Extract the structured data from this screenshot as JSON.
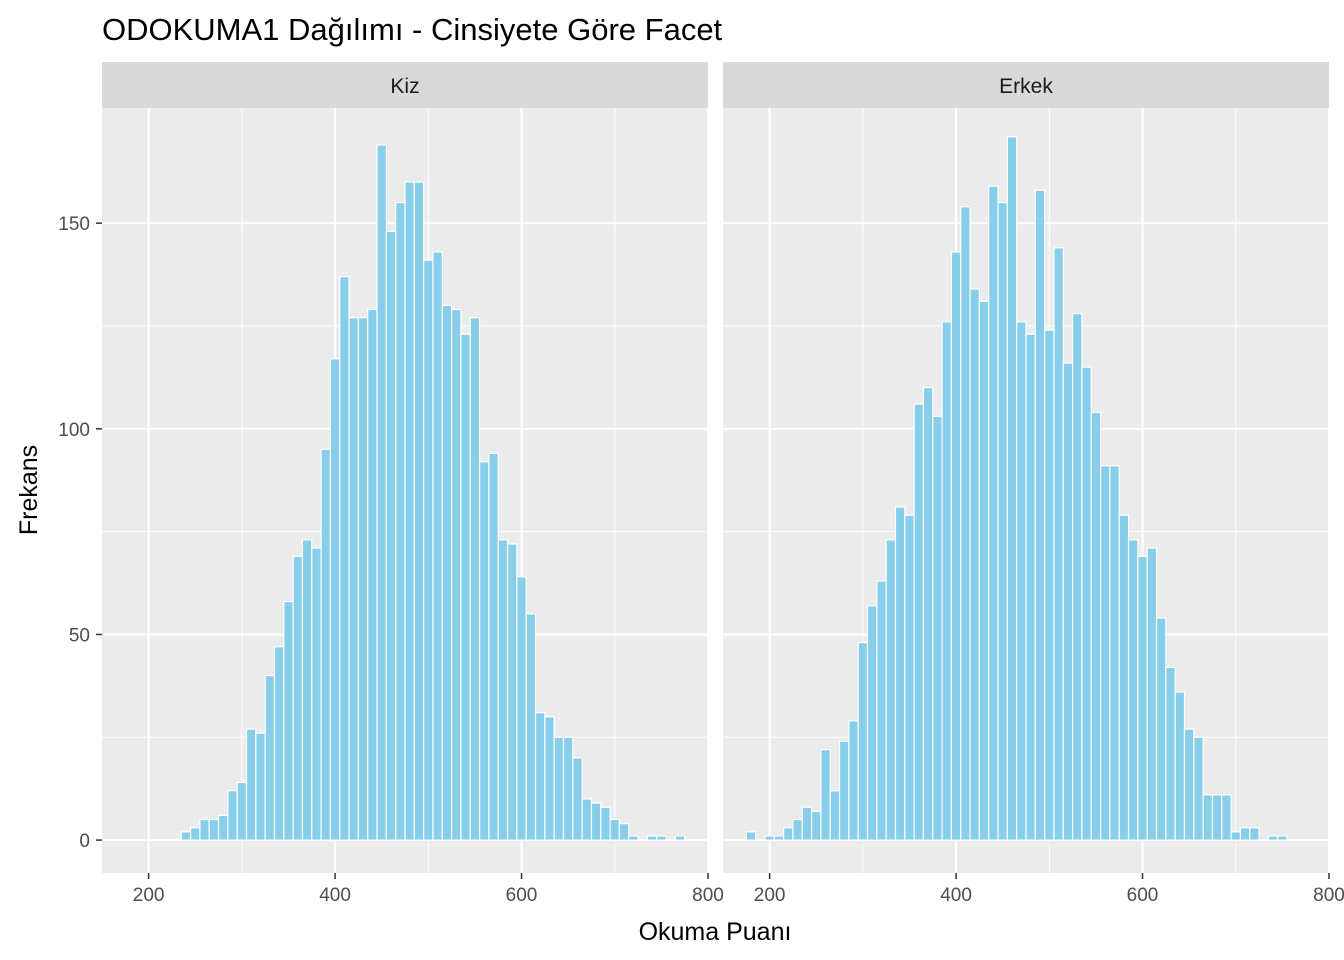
{
  "chart_data": {
    "type": "histogram",
    "title": "ODOKUMA1 Dağılımı - Cinsiyete Göre Facet",
    "xlabel": "Okuma Puanı",
    "ylabel": "Frekans",
    "xlim": [
      150,
      800
    ],
    "ylim": [
      -8,
      178
    ],
    "xticks": [
      200,
      400,
      600,
      800
    ],
    "yticks": [
      0,
      50,
      100,
      150
    ],
    "bin_width": 10,
    "fill_color": "#87CEEB",
    "bar_outline": "#ffffff",
    "panel_background": "#EBEBEB",
    "strip_background": "#D9D9D9",
    "grid": true,
    "facets": [
      {
        "label": "Kiz",
        "bin_starts": [
          235,
          245,
          255,
          265,
          275,
          285,
          295,
          305,
          315,
          325,
          335,
          345,
          355,
          365,
          375,
          385,
          395,
          405,
          415,
          425,
          435,
          445,
          455,
          465,
          475,
          485,
          495,
          505,
          515,
          525,
          535,
          545,
          555,
          565,
          575,
          585,
          595,
          605,
          615,
          625,
          635,
          645,
          655,
          665,
          675,
          685,
          695,
          705,
          715,
          725,
          735,
          745,
          755,
          765
        ],
        "counts": [
          2,
          3,
          5,
          5,
          6,
          12,
          14,
          27,
          26,
          40,
          47,
          58,
          69,
          73,
          71,
          95,
          117,
          137,
          127,
          127,
          129,
          169,
          148,
          155,
          160,
          160,
          141,
          143,
          130,
          129,
          123,
          127,
          92,
          94,
          73,
          72,
          64,
          55,
          31,
          30,
          25,
          25,
          20,
          10,
          9,
          8,
          5,
          4,
          1,
          0,
          1,
          1,
          0,
          1
        ]
      },
      {
        "label": "Erkek",
        "bin_starts": [
          175,
          185,
          195,
          205,
          215,
          225,
          235,
          245,
          255,
          265,
          275,
          285,
          295,
          305,
          315,
          325,
          335,
          345,
          355,
          365,
          375,
          385,
          395,
          405,
          415,
          425,
          435,
          445,
          455,
          465,
          475,
          485,
          495,
          505,
          515,
          525,
          535,
          545,
          555,
          565,
          575,
          585,
          595,
          605,
          615,
          625,
          635,
          645,
          655,
          665,
          675,
          685,
          695,
          705,
          715,
          725,
          735,
          745
        ],
        "counts": [
          2,
          0,
          1,
          1,
          3,
          5,
          8,
          7,
          22,
          12,
          24,
          29,
          48,
          57,
          63,
          73,
          81,
          79,
          106,
          110,
          103,
          126,
          143,
          154,
          134,
          131,
          159,
          155,
          171,
          126,
          123,
          158,
          124,
          144,
          116,
          128,
          115,
          104,
          91,
          91,
          79,
          73,
          69,
          71,
          54,
          42,
          36,
          27,
          25,
          11,
          11,
          11,
          2,
          3,
          3,
          0,
          1,
          1
        ]
      }
    ]
  }
}
